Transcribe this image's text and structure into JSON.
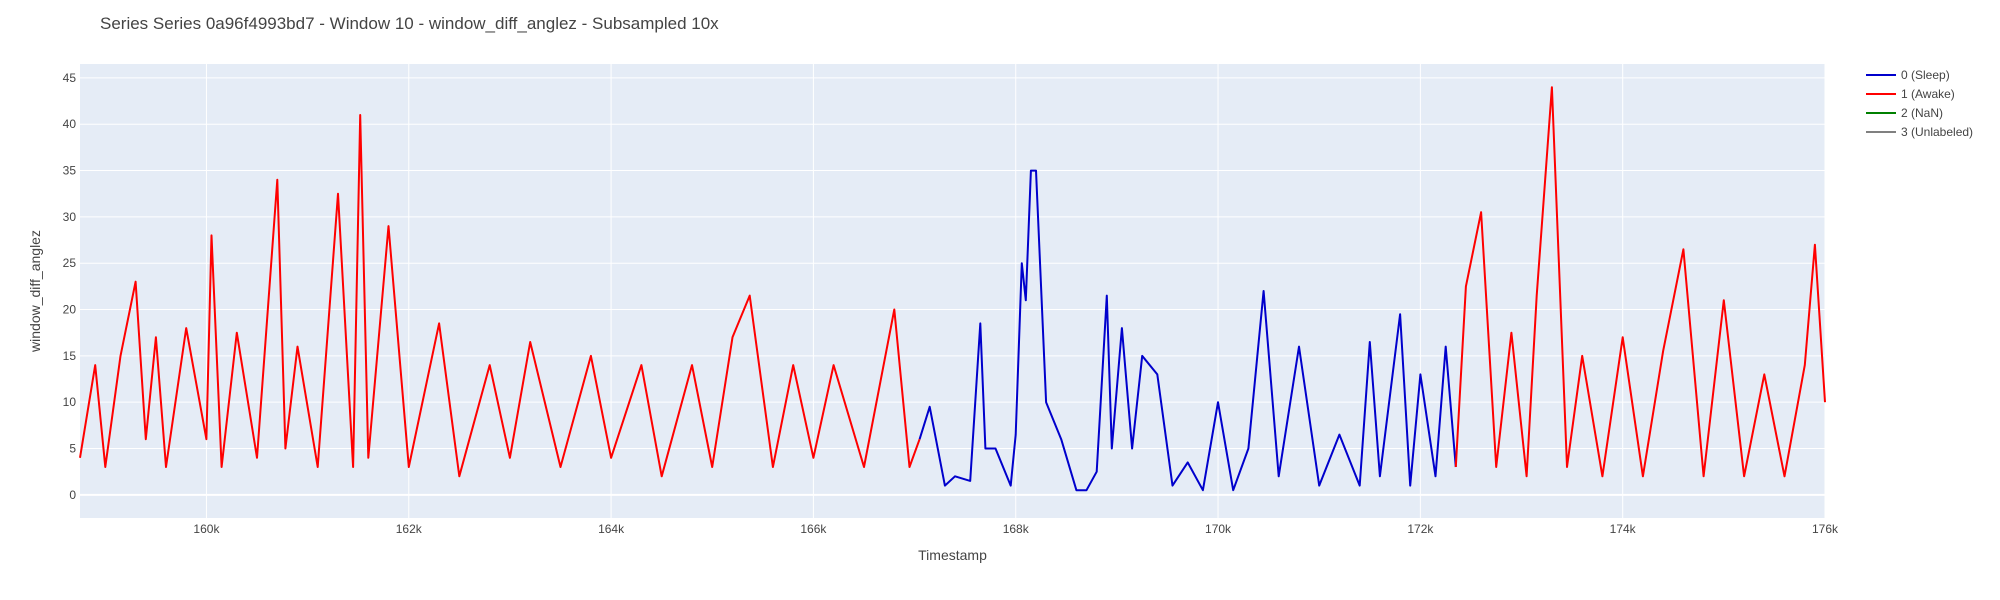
{
  "chart_data": {
    "type": "line",
    "title": "Series Series 0a96f4993bd7 - Window 10 - window_diff_anglez - Subsampled 10x",
    "xlabel": "Timestamp",
    "ylabel": "window_diff_anglez",
    "xlim": [
      158750,
      176000
    ],
    "ylim": [
      -2.5,
      46.5
    ],
    "x_ticks": [
      160000,
      162000,
      164000,
      166000,
      168000,
      170000,
      172000,
      174000,
      176000
    ],
    "x_tick_labels": [
      "160k",
      "162k",
      "164k",
      "166k",
      "168k",
      "170k",
      "172k",
      "174k",
      "176k"
    ],
    "y_ticks": [
      0,
      5,
      10,
      15,
      20,
      25,
      30,
      35,
      40,
      45
    ],
    "y_tick_labels": [
      "0",
      "5",
      "10",
      "15",
      "20",
      "25",
      "30",
      "35",
      "40",
      "45"
    ],
    "grid": true,
    "legend_position": "top-right",
    "legend": [
      {
        "label": "0 (Sleep)",
        "color": "#0000cc"
      },
      {
        "label": "1 (Awake)",
        "color": "#ff0000"
      },
      {
        "label": "2 (NaN)",
        "color": "#008000"
      },
      {
        "label": "3 (Unlabeled)",
        "color": "#808080"
      }
    ],
    "series": [
      {
        "label_class": "1 (Awake)",
        "color": "#ff0000",
        "x": [
          158750,
          158900,
          159000,
          159150,
          159300,
          159400,
          159500,
          159600,
          159800,
          160000,
          160050,
          160150,
          160300,
          160500,
          160700,
          160780,
          160900,
          161100,
          161300,
          161450,
          161520,
          161600,
          161800,
          162000,
          162300,
          162500,
          162800,
          163000,
          163200,
          163500,
          163800,
          164000,
          164300,
          164500,
          164800,
          165000,
          165200,
          165370,
          165600,
          165800,
          166000,
          166200,
          166500,
          166800,
          166950,
          167050
        ],
        "y": [
          4,
          14,
          3,
          15,
          23,
          6,
          17,
          3,
          18,
          6,
          28,
          3,
          17.5,
          4,
          34,
          5,
          16,
          3,
          32.5,
          3,
          41,
          4,
          29,
          3,
          18.5,
          2,
          14,
          4,
          16.5,
          3,
          15,
          4,
          14,
          2,
          14,
          3,
          17,
          21.5,
          3,
          14,
          4,
          14,
          3,
          20,
          3,
          6
        ]
      },
      {
        "label_class": "0 (Sleep)",
        "color": "#0000cc",
        "x": [
          167050,
          167150,
          167300,
          167400,
          167550,
          167650,
          167700,
          167800,
          167950,
          168000,
          168060,
          168100,
          168150,
          168200,
          168300,
          168450,
          168600,
          168700,
          168800,
          168900,
          168950,
          169050,
          169150,
          169250,
          169400,
          169550,
          169700,
          169850,
          170000,
          170150,
          170300,
          170450,
          170600,
          170800,
          171000,
          171200,
          171400,
          171500,
          171600,
          171800,
          171900,
          172000,
          172150,
          172250,
          172350
        ],
        "y": [
          6,
          9.5,
          1,
          2,
          1.5,
          18.5,
          5,
          5,
          1,
          6.5,
          25,
          21,
          35,
          35,
          10,
          6,
          0.5,
          0.5,
          2.5,
          21.5,
          5,
          18,
          5,
          15,
          13,
          1,
          3.5,
          0.5,
          10,
          0.5,
          5,
          22,
          2,
          16,
          1,
          6.5,
          1,
          16.5,
          2,
          19.5,
          1,
          13,
          2,
          16,
          3
        ]
      },
      {
        "label_class": "1 (Awake)",
        "color": "#ff0000",
        "x": [
          172350,
          172450,
          172600,
          172750,
          172900,
          173050,
          173150,
          173300,
          173450,
          173600,
          173800,
          174000,
          174200,
          174400,
          174600,
          174800,
          175000,
          175200,
          175400,
          175600,
          175800,
          175900,
          176000
        ],
        "y": [
          3,
          22.5,
          30.5,
          3,
          17.5,
          2,
          21.5,
          44,
          3,
          15,
          2,
          17,
          2,
          15.5,
          26.5,
          2,
          21,
          2,
          13,
          2,
          14,
          27,
          10
        ]
      }
    ]
  }
}
